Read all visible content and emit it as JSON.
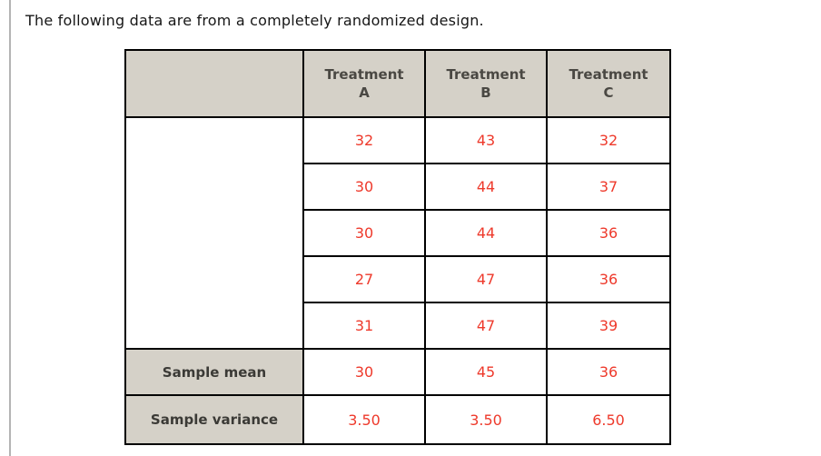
{
  "page": {
    "title": "The following data are from a completely randomized design."
  },
  "table": {
    "header": {
      "columns": [
        {
          "line1": "Treatment",
          "line2": "A"
        },
        {
          "line1": "Treatment",
          "line2": "B"
        },
        {
          "line1": "Treatment",
          "line2": "C"
        }
      ]
    },
    "data_rows": [
      [
        "32",
        "43",
        "32"
      ],
      [
        "30",
        "44",
        "37"
      ],
      [
        "30",
        "44",
        "36"
      ],
      [
        "27",
        "47",
        "36"
      ],
      [
        "31",
        "47",
        "39"
      ]
    ],
    "summary_rows": [
      {
        "label": "Sample mean",
        "values": [
          "30",
          "45",
          "36"
        ]
      },
      {
        "label": "Sample variance",
        "values": [
          "3.50",
          "3.50",
          "6.50"
        ]
      }
    ]
  },
  "colors": {
    "header_bg": "#d5d1c8",
    "value_text": "#ee392b",
    "header_text": "#4a4843",
    "border": "#000000",
    "left_rule": "#b4b4b4"
  }
}
